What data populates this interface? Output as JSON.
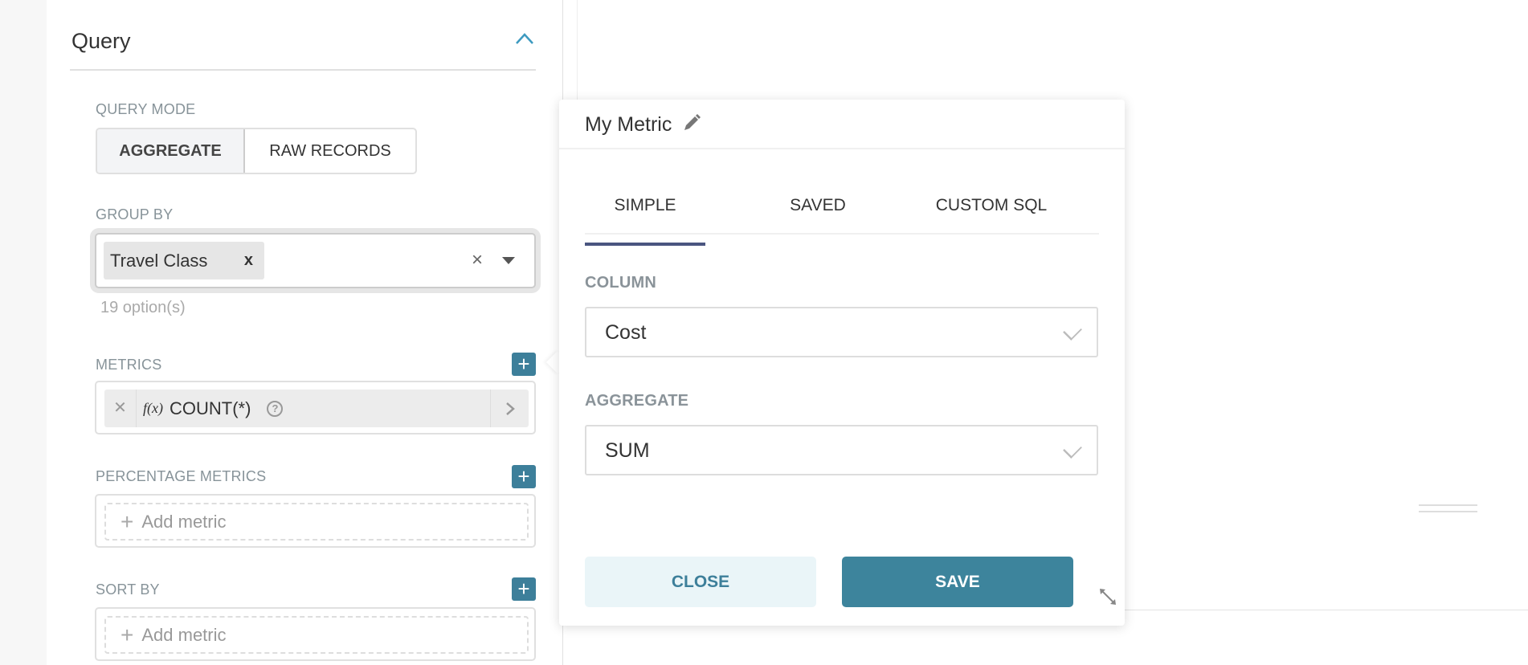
{
  "query": {
    "title": "Query",
    "query_mode": {
      "label": "QUERY MODE",
      "options": [
        "AGGREGATE",
        "RAW RECORDS"
      ],
      "selected": "AGGREGATE"
    },
    "group_by": {
      "label": "GROUP BY",
      "tags": [
        "Travel Class"
      ],
      "remove_tag": "x",
      "clear": "×",
      "hint": "19 option(s)"
    },
    "metrics": {
      "label": "METRICS",
      "items": [
        {
          "remove": "✕",
          "func": "f(x)",
          "label": "COUNT(*)"
        }
      ]
    },
    "percentage_metrics": {
      "label": "PERCENTAGE METRICS",
      "placeholder": "Add metric"
    },
    "sort_by": {
      "label": "SORT BY",
      "placeholder": "Add metric"
    },
    "add": "+"
  },
  "popover": {
    "title": "My Metric",
    "tabs": [
      "SIMPLE",
      "SAVED",
      "CUSTOM SQL"
    ],
    "active_tab": "SIMPLE",
    "column": {
      "label": "COLUMN",
      "value": "Cost"
    },
    "aggregate": {
      "label": "AGGREGATE",
      "value": "SUM"
    },
    "close_label": "CLOSE",
    "save_label": "SAVE"
  },
  "colors": {
    "accent": "#3d7f9a",
    "tab_underline": "#4a5580",
    "close_bg": "#eaf5f8"
  }
}
